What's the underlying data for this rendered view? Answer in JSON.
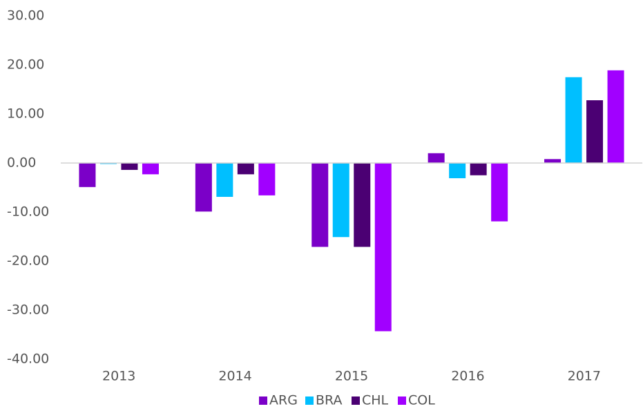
{
  "chart_data": {
    "type": "bar",
    "categories": [
      "2013",
      "2014",
      "2015",
      "2016",
      "2017"
    ],
    "series": [
      {
        "name": "ARG",
        "color": "#7b00c8",
        "values": [
          -4.9,
          -9.9,
          -17.1,
          2.0,
          0.8
        ]
      },
      {
        "name": "BRA",
        "color": "#00bfff",
        "values": [
          -0.2,
          -6.9,
          -15.1,
          -3.1,
          17.5
        ]
      },
      {
        "name": "CHL",
        "color": "#4b0073",
        "values": [
          -1.4,
          -2.3,
          -17.1,
          -2.5,
          12.8
        ]
      },
      {
        "name": "COL",
        "color": "#a100ff",
        "values": [
          -2.3,
          -6.6,
          -34.3,
          -11.9,
          18.9
        ]
      }
    ],
    "ylim": [
      -40,
      30
    ],
    "yticks": [
      {
        "value": -40,
        "label": "-40.00"
      },
      {
        "value": -30,
        "label": "-30.00"
      },
      {
        "value": -20,
        "label": "-20.00"
      },
      {
        "value": -10,
        "label": "-10.00"
      },
      {
        "value": 0,
        "label": "0.00"
      },
      {
        "value": 10,
        "label": "10.00"
      },
      {
        "value": 20,
        "label": "20.00"
      },
      {
        "value": 30,
        "label": "30.00"
      }
    ],
    "legend": "bottom"
  }
}
